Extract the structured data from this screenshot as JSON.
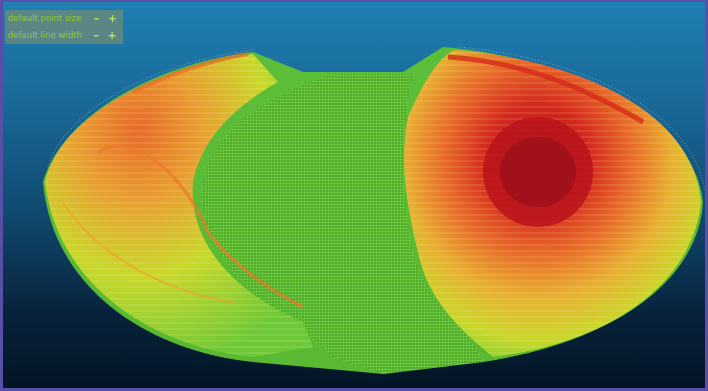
{
  "controls": {
    "point_size_label": "default point size",
    "line_width_label": "default line width",
    "decrease_symbol": "–",
    "increase_symbol": "+"
  },
  "viewport": {
    "background_top": "#1f7fb2",
    "background_bottom": "#031424",
    "colormap": [
      "#5ec83a",
      "#9ad22e",
      "#d6dc2a",
      "#f0b030",
      "#e86a28",
      "#d42a1c",
      "#b0141a"
    ],
    "floor_color": "#5cbf32"
  }
}
